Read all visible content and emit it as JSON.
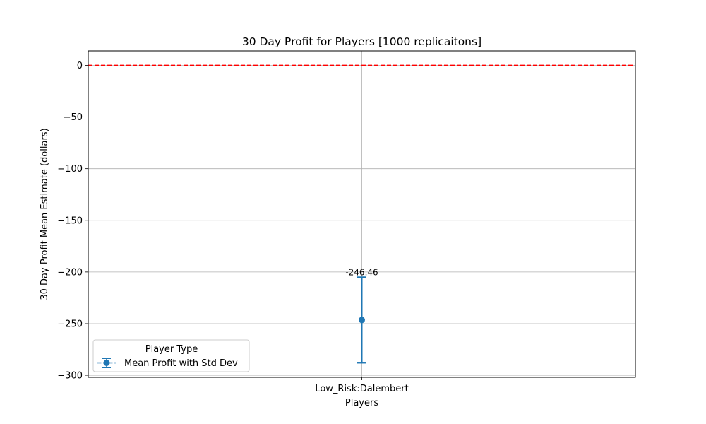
{
  "chart_data": {
    "type": "scatter",
    "title": "30 Day Profit for Players [1000 replicaitons]",
    "xlabel": "Players",
    "ylabel": "30 Day Profit Mean Estimate (dollars)",
    "categories": [
      "Low_Risk:Dalembert"
    ],
    "ylim": [
      -302,
      14
    ],
    "yticks": [
      0,
      -50,
      -100,
      -150,
      -200,
      -250,
      -300
    ],
    "ytick_labels": [
      "0",
      "−50",
      "−100",
      "−150",
      "−200",
      "−250",
      "−300"
    ],
    "grid": true,
    "series": [
      {
        "name": "Mean Profit with Std Dev",
        "color": "#1f77b4",
        "values": [
          -246.46
        ],
        "error_lower": [
          -287.8
        ],
        "error_upper": [
          -205.2
        ],
        "data_labels": [
          "-246.46"
        ]
      }
    ],
    "reference_line": {
      "y": 0,
      "color": "#ff0000",
      "style": "dashed"
    },
    "legend": {
      "title": "Player Type",
      "placement": "lower-left"
    }
  }
}
